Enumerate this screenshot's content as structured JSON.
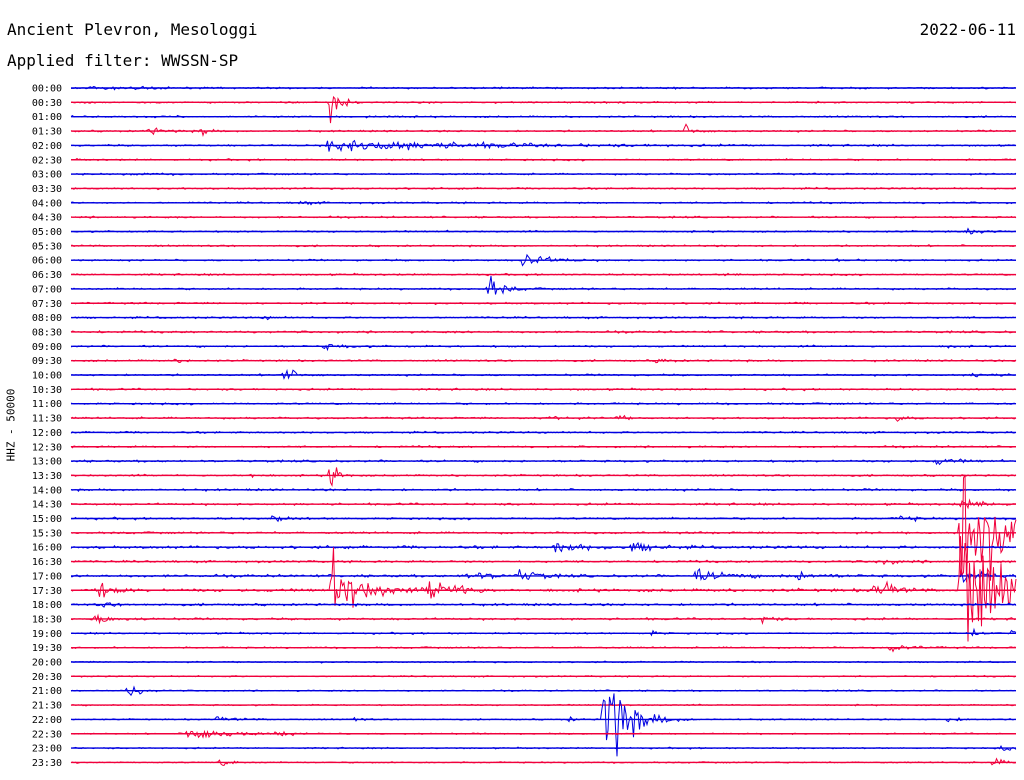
{
  "header": {
    "location": "Ancient Plevron, Mesologgi",
    "date": "2022-06-11",
    "filter": "Applied filter: WWSSN-SP"
  },
  "chart_data": {
    "type": "line",
    "title": "Ancient Plevron, Mesologgi",
    "ylabel": "HHZ - 50000",
    "xlabel": "",
    "row_labels": [
      "00:00",
      "00:30",
      "01:00",
      "01:30",
      "02:00",
      "02:30",
      "03:00",
      "03:30",
      "04:00",
      "04:30",
      "05:00",
      "05:30",
      "06:00",
      "06:30",
      "07:00",
      "07:30",
      "08:00",
      "08:30",
      "09:00",
      "09:30",
      "10:00",
      "10:30",
      "11:00",
      "11:30",
      "12:00",
      "12:30",
      "13:00",
      "13:30",
      "14:00",
      "14:30",
      "15:00",
      "15:30",
      "16:00",
      "16:30",
      "17:00",
      "17:30",
      "18:00",
      "18:30",
      "19:00",
      "19:30",
      "20:00",
      "20:30",
      "21:00",
      "21:30",
      "22:00",
      "22:30",
      "23:00",
      "23:30"
    ],
    "trace_colors": [
      "#0000e0",
      "#f0003c"
    ],
    "background_noise": [
      1.5,
      1.5,
      1.5,
      1.5,
      1.5,
      1.5,
      1.5,
      1.5,
      1.5,
      1.5,
      1.5,
      1.5,
      1.5,
      1.5,
      1.6,
      1.6,
      1.6,
      1.8,
      1.6,
      1.6,
      1.6,
      1.6,
      1.6,
      1.6,
      1.6,
      1.6,
      1.8,
      1.6,
      1.8,
      1.8,
      1.8,
      1.8,
      2.4,
      1.8,
      2.2,
      2.6,
      2,
      1.8,
      1.4,
      1.4,
      1.2,
      1.2,
      1.2,
      1.2,
      1.2,
      1.2,
      1.2,
      1.2
    ],
    "events": [
      {
        "row": 0,
        "minute": 0.5,
        "amp": 3,
        "dur": 1.2
      },
      {
        "row": 0,
        "minute": 2,
        "amp": 2,
        "dur": 1
      },
      {
        "row": 1,
        "minute": 8.2,
        "amp": 36,
        "dur": 0.4
      },
      {
        "row": 3,
        "minute": 2.4,
        "amp": 5,
        "dur": 0.8
      },
      {
        "row": 3,
        "minute": 4.1,
        "amp": 10,
        "dur": 0.3
      },
      {
        "row": 3,
        "minute": 19.5,
        "amp": 10,
        "dur": 0.5
      },
      {
        "row": 4,
        "minute": 8.1,
        "amp": 10,
        "dur": 6
      },
      {
        "row": 6,
        "minute": 1.8,
        "amp": 2,
        "dur": 1
      },
      {
        "row": 8,
        "minute": 7.2,
        "amp": 3,
        "dur": 0.6
      },
      {
        "row": 10,
        "minute": 28.2,
        "amp": 4,
        "dur": 1
      },
      {
        "row": 12,
        "minute": 14.3,
        "amp": 14,
        "dur": 1
      },
      {
        "row": 12,
        "minute": 24.3,
        "amp": 3,
        "dur": 0.5
      },
      {
        "row": 13,
        "minute": 20.8,
        "amp": 3,
        "dur": 0.4
      },
      {
        "row": 14,
        "minute": 13.2,
        "amp": 24,
        "dur": 0.6
      },
      {
        "row": 16,
        "minute": 6.1,
        "amp": 3,
        "dur": 0.5
      },
      {
        "row": 18,
        "minute": 8,
        "amp": 4,
        "dur": 1
      },
      {
        "row": 18,
        "minute": 27.8,
        "amp": 4,
        "dur": 0.3
      },
      {
        "row": 19,
        "minute": 3.3,
        "amp": 3,
        "dur": 0.6
      },
      {
        "row": 19,
        "minute": 18.6,
        "amp": 4,
        "dur": 0.5
      },
      {
        "row": 20,
        "minute": 6.7,
        "amp": 12,
        "dur": 0.6
      },
      {
        "row": 20,
        "minute": 28.6,
        "amp": 4,
        "dur": 0.8
      },
      {
        "row": 23,
        "minute": 15.1,
        "amp": 6,
        "dur": 0.6
      },
      {
        "row": 23,
        "minute": 17.3,
        "amp": 5,
        "dur": 0.4
      },
      {
        "row": 23,
        "minute": 26.2,
        "amp": 5,
        "dur": 0.4
      },
      {
        "row": 26,
        "minute": 27.4,
        "amp": 5,
        "dur": 1
      },
      {
        "row": 27,
        "minute": 5.7,
        "amp": 4,
        "dur": 0.4
      },
      {
        "row": 27,
        "minute": 8.2,
        "amp": 40,
        "dur": 0.3
      },
      {
        "row": 29,
        "minute": 28.2,
        "amp": 8,
        "dur": 1
      },
      {
        "row": 30,
        "minute": 6.3,
        "amp": 6,
        "dur": 0.6
      },
      {
        "row": 30,
        "minute": 26.3,
        "amp": 5,
        "dur": 0.7
      },
      {
        "row": 31,
        "minute": 28.2,
        "amp": 150,
        "dur": 1.5
      },
      {
        "row": 31,
        "minute": 29.4,
        "amp": 6,
        "dur": 1.5
      },
      {
        "row": 32,
        "minute": 15.3,
        "amp": 8,
        "dur": 1.4
      },
      {
        "row": 32,
        "minute": 17.8,
        "amp": 8,
        "dur": 1
      },
      {
        "row": 33,
        "minute": 25.6,
        "amp": 6,
        "dur": 0.8
      },
      {
        "row": 34,
        "minute": 12.5,
        "amp": 8,
        "dur": 1
      },
      {
        "row": 34,
        "minute": 14.2,
        "amp": 10,
        "dur": 0.8
      },
      {
        "row": 34,
        "minute": 19.8,
        "amp": 8,
        "dur": 1.6
      },
      {
        "row": 34,
        "minute": 23,
        "amp": 6,
        "dur": 1
      },
      {
        "row": 34,
        "minute": 28.3,
        "amp": 10,
        "dur": 1
      },
      {
        "row": 35,
        "minute": 0.8,
        "amp": 16,
        "dur": 0.6
      },
      {
        "row": 35,
        "minute": 8.2,
        "amp": 55,
        "dur": 1.2
      },
      {
        "row": 35,
        "minute": 11.3,
        "amp": 25,
        "dur": 0.8
      },
      {
        "row": 35,
        "minute": 12.4,
        "amp": 10,
        "dur": 0.5
      },
      {
        "row": 35,
        "minute": 25.4,
        "amp": 10,
        "dur": 0.6
      },
      {
        "row": 35,
        "minute": 25.9,
        "amp": 12,
        "dur": 0.5
      },
      {
        "row": 35,
        "minute": 28.2,
        "amp": 150,
        "dur": 1.4
      },
      {
        "row": 36,
        "minute": 0.9,
        "amp": 4,
        "dur": 0.6
      },
      {
        "row": 37,
        "minute": 0.7,
        "amp": 6,
        "dur": 1
      },
      {
        "row": 37,
        "minute": 21.9,
        "amp": 8,
        "dur": 0.4
      },
      {
        "row": 38,
        "minute": 18.4,
        "amp": 4,
        "dur": 0.4
      },
      {
        "row": 38,
        "minute": 28.6,
        "amp": 7,
        "dur": 0.4
      },
      {
        "row": 38,
        "minute": 29.8,
        "amp": 5,
        "dur": 0.4
      },
      {
        "row": 39,
        "minute": 26,
        "amp": 5,
        "dur": 1
      },
      {
        "row": 42,
        "minute": 1.8,
        "amp": 12,
        "dur": 0.5
      },
      {
        "row": 44,
        "minute": 4.6,
        "amp": 5,
        "dur": 0.8
      },
      {
        "row": 44,
        "minute": 9,
        "amp": 4,
        "dur": 0.3
      },
      {
        "row": 44,
        "minute": 15.8,
        "amp": 4,
        "dur": 0.3
      },
      {
        "row": 44,
        "minute": 16.9,
        "amp": 95,
        "dur": 1
      },
      {
        "row": 44,
        "minute": 27.8,
        "amp": 4,
        "dur": 0.6
      },
      {
        "row": 45,
        "minute": 3.6,
        "amp": 14,
        "dur": 1.5
      },
      {
        "row": 45,
        "minute": 6.5,
        "amp": 6,
        "dur": 0.4
      },
      {
        "row": 46,
        "minute": 29.5,
        "amp": 5,
        "dur": 0.5
      },
      {
        "row": 47,
        "minute": 4.7,
        "amp": 5,
        "dur": 0.6
      },
      {
        "row": 47,
        "minute": 29.2,
        "amp": 7,
        "dur": 0.6
      }
    ]
  }
}
